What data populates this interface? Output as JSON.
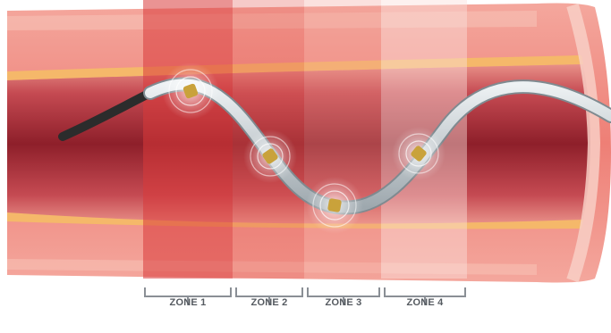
{
  "zones": [
    {
      "label": "ZONE 1",
      "color": "#d83a3a",
      "opacity": 0.55
    },
    {
      "label": "ZONE 2",
      "color": "#e35a55",
      "opacity": 0.32
    },
    {
      "label": "ZONE 3",
      "color": "#f19a92",
      "opacity": 0.3
    },
    {
      "label": "ZONE 4",
      "color": "#fbe1dc",
      "opacity": 0.45
    }
  ],
  "colors": {
    "vessel_outer": "#f08f86",
    "vessel_wall_stripe": "#f7b9a8",
    "fat_stripe": "#f5b86a",
    "lumen_dark": "#8e1f2a",
    "lumen_mid": "#c13e48",
    "catheter": "#c9d1d6",
    "catheter_tip": "#2c2c2c",
    "electrode": "#c9a23b",
    "bracket": "#8a8f95"
  },
  "icons": {
    "electrode": "electrode-ring-icon"
  }
}
